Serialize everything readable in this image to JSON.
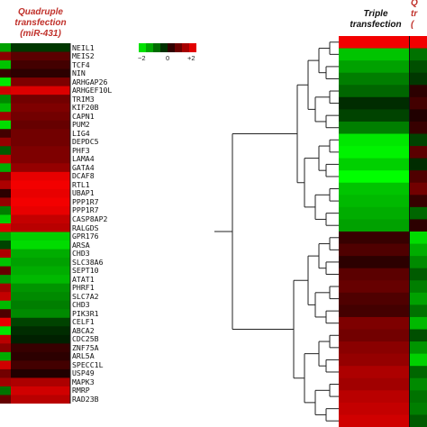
{
  "left_panel": {
    "column_label_lines": [
      "Quadruple",
      "transfection",
      "(miR-431)"
    ],
    "genes": [
      "NEIL1",
      "MEIS2",
      "TCF4",
      "NIN",
      "ARHGAP26",
      "ARHGEF10L",
      "TRIM3",
      "KIF20B",
      "CAPN1",
      "PUM2",
      "LIG4",
      "DEPDC5",
      "PHF3",
      "LAMA4",
      "GATA4",
      "DCAF8",
      "RTL1",
      "UBAP1",
      "PPP1R7",
      "PPP1R7",
      "CASP8AP2",
      "RALGDS",
      "GPR176",
      "ARSA",
      "CHD3",
      "SLC38A6",
      "SEPT10",
      "ATAT1",
      "PHRF1",
      "SLC7A2",
      "CHD3",
      "PIK3R1",
      "CELF1",
      "ABCA2",
      "CDC25B",
      "ZNF75A",
      "ARL5A",
      "SPECC1L",
      "USP49",
      "MAPK3",
      "RMRP",
      "RAD23B"
    ],
    "heat_values": [
      -0.3,
      0.6,
      0.4,
      0.2,
      0.9,
      1.7,
      0.8,
      0.9,
      0.8,
      0.7,
      0.8,
      0.8,
      0.9,
      0.9,
      1.1,
      1.8,
      1.9,
      1.8,
      1.9,
      1.8,
      1.5,
      1.4,
      -1.6,
      -1.7,
      -1.3,
      -1.2,
      -1.3,
      -1.4,
      -1.1,
      -1.0,
      -0.9,
      -1.0,
      -0.4,
      -0.2,
      -0.1,
      0.3,
      0.2,
      0.4,
      0.1,
      1.3,
      1.6,
      1.4
    ],
    "edge_values": [
      -1.2,
      1.0,
      -1.5,
      0.3,
      -1.8,
      1.6,
      -1.0,
      -1.4,
      1.2,
      -1.7,
      0.4,
      1.1,
      -0.6,
      1.5,
      -1.3,
      0.9,
      1.3,
      0.2,
      1.1,
      -0.9,
      -1.6,
      1.7,
      -1.2,
      -0.4,
      1.3,
      -1.5,
      0.7,
      -1.1,
      1.2,
      1.5,
      -1.4,
      0.5,
      1.8,
      -1.8,
      1.4,
      1.0,
      -1.3,
      1.6,
      0.8,
      1.2,
      -0.8,
      0.7
    ]
  },
  "legend": {
    "ticks": [
      "−2",
      "0",
      "+2"
    ],
    "range": [
      -2,
      2
    ]
  },
  "right_panel": {
    "column_label_lines": [
      "Triple",
      "transfection"
    ],
    "clipped_label_lines": [
      "Q",
      "tr",
      "("
    ],
    "heat_values": [
      1.9,
      -1.5,
      -1.2,
      -0.9,
      -0.7,
      -0.2,
      -0.4,
      -0.9,
      -1.8,
      -1.9,
      -1.6,
      -2.0,
      -1.5,
      -1.4,
      -1.3,
      -1.2,
      0.3,
      0.5,
      0.2,
      0.6,
      0.7,
      0.5,
      0.4,
      0.9,
      0.8,
      1.0,
      1.1,
      1.3,
      1.2,
      1.4,
      1.5,
      1.6
    ],
    "edge_values": [
      1.9,
      -0.8,
      -0.5,
      -0.3,
      0.2,
      0.4,
      0.1,
      0.3,
      -0.4,
      0.6,
      -0.2,
      0.5,
      0.8,
      0.3,
      -0.7,
      0.2,
      -1.7,
      -1.3,
      -1.0,
      -0.6,
      -0.9,
      -1.2,
      -0.8,
      -1.4,
      -0.5,
      -1.1,
      -1.6,
      -0.7,
      -1.0,
      -0.8,
      -0.9,
      -0.6
    ]
  }
}
